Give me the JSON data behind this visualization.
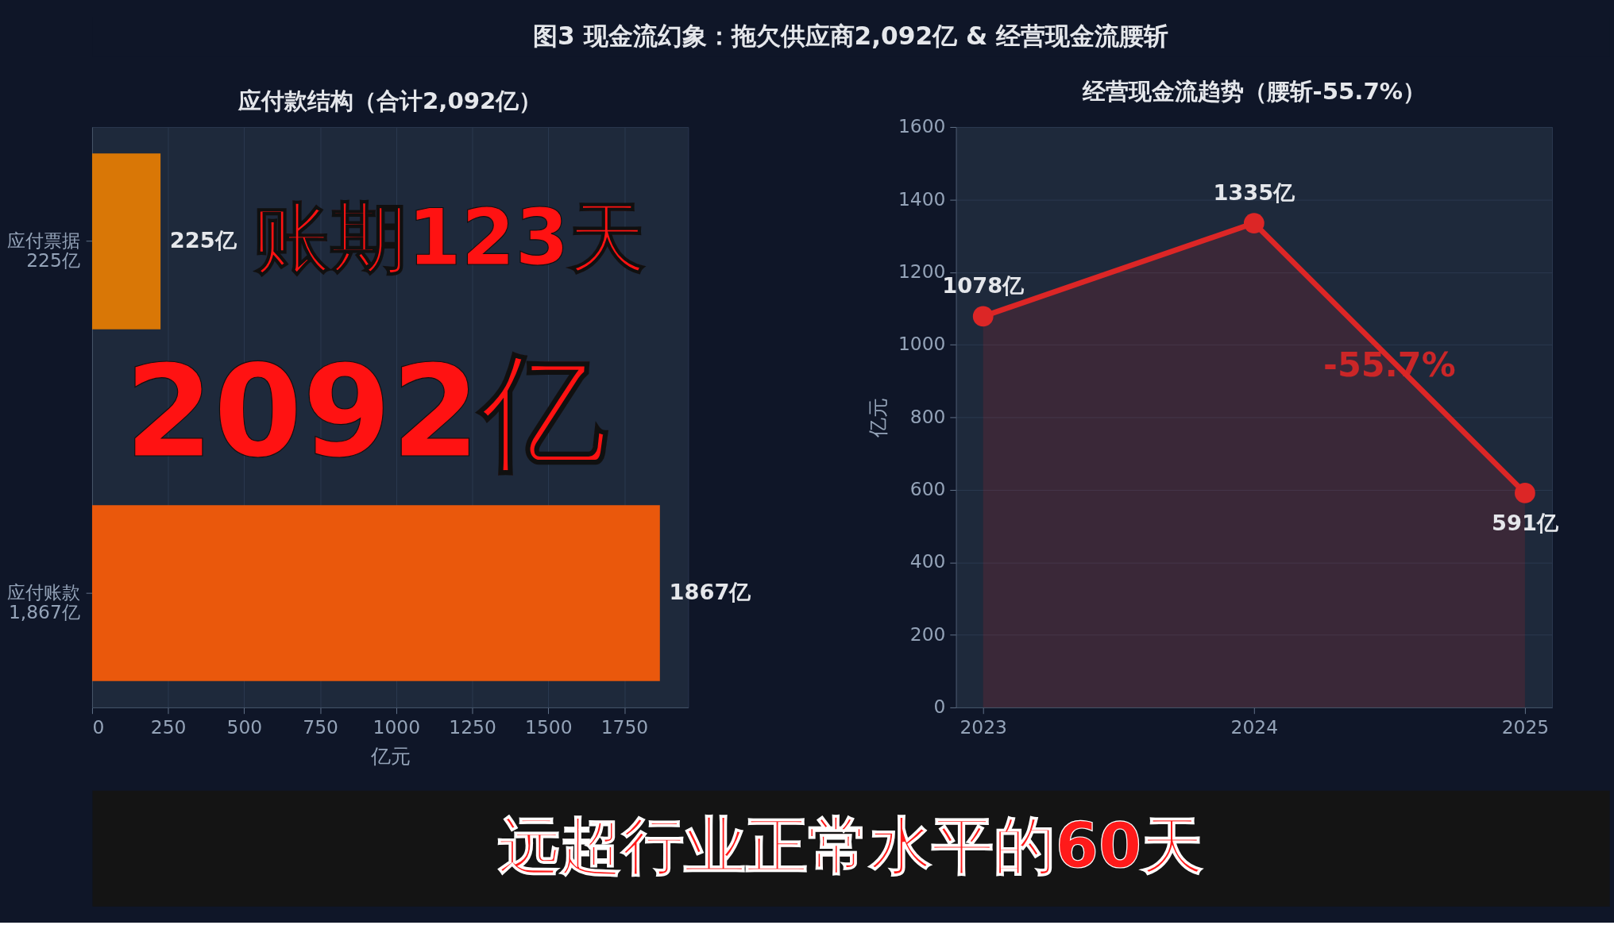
{
  "chart_data": [
    {
      "type": "other",
      "title": "图3 现金流幻象：拖欠供应商2,092亿 & 经营现金流腰斩"
    },
    {
      "type": "bar",
      "orientation": "horizontal",
      "title": "应付款结构（合计2,092亿）",
      "xlabel": "亿元",
      "categories": [
        "应付票据\n225亿",
        "应付账款\n1,867亿"
      ],
      "values": [
        225,
        1867
      ],
      "colors": [
        "#d97706",
        "#ea580c"
      ],
      "value_labels": [
        "225亿",
        "1867亿"
      ],
      "xlim": [
        0,
        1960
      ],
      "xticks": [
        0,
        250,
        500,
        750,
        1000,
        1250,
        1500,
        1750
      ],
      "grid": "x",
      "annotations": [
        "账期123天",
        "2092亿"
      ]
    },
    {
      "type": "area",
      "title": "经营现金流趋势（腰斩-55.7%）",
      "ylabel": "亿元",
      "x": [
        2023,
        2024,
        2025
      ],
      "series": [
        {
          "color": "#dc2626",
          "values": [
            1078,
            1335,
            591
          ],
          "value_labels": [
            "1078亿",
            "1335亿",
            "591亿"
          ]
        }
      ],
      "xlim": [
        2022.9,
        2025.1
      ],
      "xticks": [
        2023,
        2024,
        2025
      ],
      "ylim": [
        0,
        1600
      ],
      "yticks": [
        0,
        200,
        400,
        600,
        800,
        1000,
        1200,
        1400,
        1600
      ],
      "grid": "y",
      "marker": "circle",
      "line_style": "solid",
      "annotations": [
        {
          "text": "-55.7%",
          "x": 2024.5,
          "y": 940
        }
      ]
    },
    {
      "type": "other",
      "annotations": [
        "远超行业正常水平的60天"
      ]
    }
  ]
}
